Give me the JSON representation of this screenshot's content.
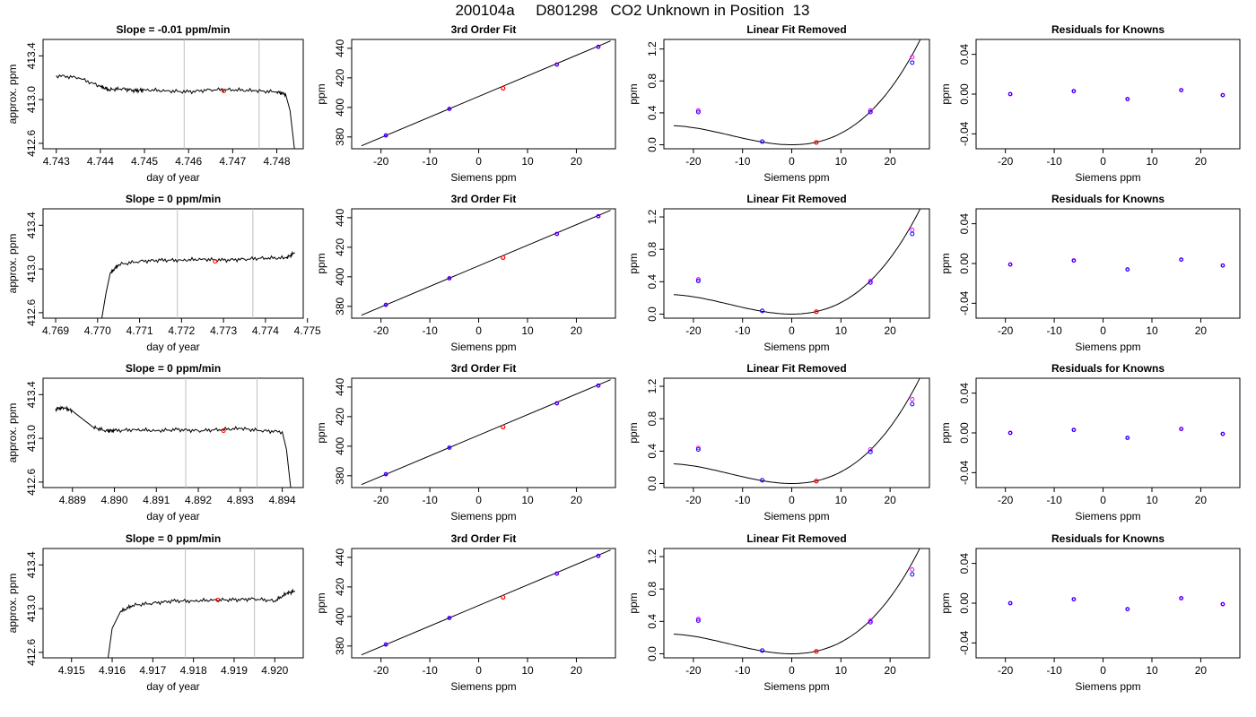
{
  "figure": {
    "title": "200104a     D801298   CO2 Unknown in Position  13"
  },
  "colors": {
    "trace": "#000000",
    "window_lines": "#bebebe",
    "unknown_point": "#ff0000",
    "known_point_a": "#0000ff",
    "known_point_b": "#ff00ff"
  },
  "chart_data": [
    {
      "type": "line",
      "row": 1,
      "col": 1,
      "title": "Slope =  -0.01  ppm/min",
      "xlabel": "day of year",
      "ylabel": "approx. ppm",
      "xlim": [
        4.7427,
        4.7486
      ],
      "ylim": [
        412.55,
        413.55
      ],
      "xticks": [
        4.743,
        4.744,
        4.745,
        4.746,
        4.747,
        4.748
      ],
      "xtick_labels": [
        "4.743",
        "4.744",
        "4.745",
        "4.746",
        "4.747",
        "4.748"
      ],
      "yticks": [
        412.6,
        413.0,
        413.4
      ],
      "ytick_labels": [
        "412.6",
        "413.0",
        "413.4"
      ],
      "window": [
        4.7459,
        4.7476
      ],
      "point": [
        4.7468,
        413.08
      ],
      "x": [
        4.743,
        4.7435,
        4.744,
        4.7442,
        4.7445,
        4.7448,
        4.745,
        4.7455,
        4.746,
        4.7465,
        4.747,
        4.7475,
        4.748,
        4.7482,
        4.7483,
        4.7484
      ],
      "y": [
        413.22,
        413.2,
        413.12,
        413.09,
        413.1,
        413.08,
        413.09,
        413.08,
        413.07,
        413.09,
        413.09,
        413.08,
        413.07,
        413.05,
        412.9,
        412.55
      ]
    },
    {
      "type": "scatter+line",
      "row": 1,
      "col": 2,
      "title": "3rd Order Fit",
      "xlabel": "Siemens ppm",
      "ylabel": "ppm",
      "xlim": [
        -26,
        28
      ],
      "ylim": [
        372,
        446
      ],
      "xticks": [
        -20,
        -10,
        0,
        10,
        20
      ],
      "xtick_labels": [
        "-20",
        "-10",
        "0",
        "10",
        "20"
      ],
      "yticks": [
        380,
        400,
        420,
        440
      ],
      "ytick_labels": [
        "380",
        "400",
        "420",
        "440"
      ],
      "fit_line": [
        [
          -24,
          374
        ],
        [
          27,
          445
        ]
      ],
      "known_x": [
        -19,
        -6,
        16,
        24.5
      ],
      "known_y": [
        381,
        399,
        429,
        441
      ],
      "unknown": [
        5,
        413
      ]
    },
    {
      "type": "scatter+line",
      "row": 1,
      "col": 3,
      "title": "Linear Fit Removed",
      "xlabel": "Siemens ppm",
      "ylabel": "ppm",
      "xlim": [
        -26,
        28
      ],
      "ylim": [
        -0.05,
        1.32
      ],
      "xticks": [
        -20,
        -10,
        0,
        10,
        20
      ],
      "xtick_labels": [
        "-20",
        "-10",
        "0",
        "10",
        "20"
      ],
      "yticks": [
        0.0,
        0.4,
        0.8,
        1.2
      ],
      "ytick_labels": [
        "0.0",
        "0.4",
        "0.8",
        "1.2"
      ],
      "curve": {
        "a": 0.00114,
        "b": 0.0,
        "c": 0.0,
        "d": 3.02e-05,
        "x_from": -24,
        "x_to": 27
      },
      "known_x": [
        -19,
        -6,
        16,
        24.5
      ],
      "known_y_a": [
        0.41,
        0.04,
        0.41,
        1.03
      ],
      "known_y_b": [
        0.43,
        0.04,
        0.43,
        1.1
      ],
      "unknown": [
        5,
        0.03
      ]
    },
    {
      "type": "scatter",
      "row": 1,
      "col": 4,
      "title": "Residuals for Knowns",
      "xlabel": "Siemens ppm",
      "ylabel": "ppm",
      "xlim": [
        -26,
        28
      ],
      "ylim": [
        -0.055,
        0.055
      ],
      "xticks": [
        -20,
        -10,
        0,
        10,
        20
      ],
      "xtick_labels": [
        "-20",
        "-10",
        "0",
        "10",
        "20"
      ],
      "yticks": [
        -0.04,
        0.0,
        0.04
      ],
      "ytick_labels": [
        "-0.04",
        "0.00",
        "0.04"
      ],
      "x": [
        -19,
        -6,
        5,
        16,
        24.5
      ],
      "y": [
        0.0,
        0.003,
        -0.005,
        0.004,
        -0.001
      ]
    },
    {
      "type": "line",
      "row": 2,
      "col": 1,
      "title": "Slope =  0  ppm/min",
      "xlabel": "day of year",
      "ylabel": "approx. ppm",
      "xlim": [
        4.7687,
        4.7749
      ],
      "ylim": [
        412.55,
        413.55
      ],
      "xticks": [
        4.769,
        4.77,
        4.771,
        4.772,
        4.773,
        4.774,
        4.775
      ],
      "xtick_labels": [
        "4.769",
        "4.770",
        "4.771",
        "4.772",
        "4.773",
        "4.774",
        "4.775"
      ],
      "yticks": [
        412.6,
        413.0,
        413.4
      ],
      "ytick_labels": [
        "412.6",
        "413.0",
        "413.4"
      ],
      "window": [
        4.7719,
        4.7737
      ],
      "point": [
        4.7728,
        413.07
      ],
      "x": [
        4.7701,
        4.7702,
        4.7703,
        4.7705,
        4.771,
        4.7715,
        4.772,
        4.7725,
        4.773,
        4.7735,
        4.774,
        4.7745,
        4.7747
      ],
      "y": [
        412.55,
        412.78,
        412.96,
        413.04,
        413.07,
        413.08,
        413.08,
        413.09,
        413.08,
        413.09,
        413.1,
        413.1,
        413.15
      ]
    },
    {
      "type": "scatter+line",
      "row": 2,
      "col": 2,
      "title": "3rd Order Fit",
      "xlabel": "Siemens ppm",
      "ylabel": "ppm",
      "xlim": [
        -26,
        28
      ],
      "ylim": [
        372,
        446
      ],
      "xticks": [
        -20,
        -10,
        0,
        10,
        20
      ],
      "xtick_labels": [
        "-20",
        "-10",
        "0",
        "10",
        "20"
      ],
      "yticks": [
        380,
        400,
        420,
        440
      ],
      "ytick_labels": [
        "380",
        "400",
        "420",
        "440"
      ],
      "fit_line": [
        [
          -24,
          374
        ],
        [
          27,
          445
        ]
      ],
      "known_x": [
        -19,
        -6,
        16,
        24.5
      ],
      "known_y": [
        381,
        399,
        429,
        441
      ],
      "unknown": [
        5,
        413
      ]
    },
    {
      "type": "scatter+line",
      "row": 2,
      "col": 3,
      "title": "Linear Fit Removed",
      "xlabel": "Siemens ppm",
      "ylabel": "ppm",
      "xlim": [
        -26,
        28
      ],
      "ylim": [
        -0.05,
        1.3
      ],
      "xticks": [
        -20,
        -10,
        0,
        10,
        20
      ],
      "xtick_labels": [
        "-20",
        "-10",
        "0",
        "10",
        "20"
      ],
      "yticks": [
        0.0,
        0.4,
        0.8,
        1.2
      ],
      "ytick_labels": [
        "0.0",
        "0.4",
        "0.8",
        "1.2"
      ],
      "curve": {
        "a": 0.00113,
        "b": 0.0,
        "c": 0.0,
        "d": 2.97e-05,
        "x_from": -24,
        "x_to": 27
      },
      "known_x": [
        -19,
        -6,
        16,
        24.5
      ],
      "known_y_a": [
        0.41,
        0.04,
        0.39,
        0.99
      ],
      "known_y_b": [
        0.43,
        0.04,
        0.41,
        1.04
      ],
      "unknown": [
        5,
        0.03
      ]
    },
    {
      "type": "scatter",
      "row": 2,
      "col": 4,
      "title": "Residuals for Knowns",
      "xlabel": "Siemens ppm",
      "ylabel": "ppm",
      "xlim": [
        -26,
        28
      ],
      "ylim": [
        -0.055,
        0.055
      ],
      "xticks": [
        -20,
        -10,
        0,
        10,
        20
      ],
      "xtick_labels": [
        "-20",
        "-10",
        "0",
        "10",
        "20"
      ],
      "yticks": [
        -0.04,
        0.0,
        0.04
      ],
      "ytick_labels": [
        "-0.04",
        "0.00",
        "0.04"
      ],
      "x": [
        -19,
        -6,
        5,
        16,
        24.5
      ],
      "y": [
        -0.001,
        0.003,
        -0.006,
        0.004,
        -0.002
      ]
    },
    {
      "type": "line",
      "row": 3,
      "col": 1,
      "title": "Slope =  0  ppm/min",
      "xlabel": "day of year",
      "ylabel": "approx. ppm",
      "xlim": [
        4.8883,
        4.8945
      ],
      "ylim": [
        412.55,
        413.55
      ],
      "xticks": [
        4.889,
        4.89,
        4.891,
        4.892,
        4.893,
        4.894
      ],
      "xtick_labels": [
        "4.889",
        "4.890",
        "4.891",
        "4.892",
        "4.893",
        "4.894"
      ],
      "yticks": [
        412.6,
        413.0,
        413.4
      ],
      "ytick_labels": [
        "412.6",
        "413.0",
        "413.4"
      ],
      "window": [
        4.8917,
        4.8934
      ],
      "point": [
        4.8926,
        413.07
      ],
      "x": [
        4.8886,
        4.8888,
        4.889,
        4.8895,
        4.8898,
        4.89,
        4.8905,
        4.891,
        4.8915,
        4.892,
        4.8925,
        4.893,
        4.8935,
        4.894,
        4.8941,
        4.8942
      ],
      "y": [
        413.27,
        413.28,
        413.25,
        413.1,
        413.07,
        413.07,
        413.08,
        413.07,
        413.08,
        413.07,
        413.08,
        413.09,
        413.07,
        413.06,
        412.9,
        412.55
      ]
    },
    {
      "type": "scatter+line",
      "row": 3,
      "col": 2,
      "title": "3rd Order Fit",
      "xlabel": "Siemens ppm",
      "ylabel": "ppm",
      "xlim": [
        -26,
        28
      ],
      "ylim": [
        372,
        446
      ],
      "xticks": [
        -20,
        -10,
        0,
        10,
        20
      ],
      "xtick_labels": [
        "-20",
        "-10",
        "0",
        "10",
        "20"
      ],
      "yticks": [
        380,
        400,
        420,
        440
      ],
      "ytick_labels": [
        "380",
        "400",
        "420",
        "440"
      ],
      "fit_line": [
        [
          -24,
          374
        ],
        [
          27,
          445
        ]
      ],
      "known_x": [
        -19,
        -6,
        16,
        24.5
      ],
      "known_y": [
        381,
        399,
        429,
        441
      ],
      "unknown": [
        5,
        413
      ]
    },
    {
      "type": "scatter+line",
      "row": 3,
      "col": 3,
      "title": "Linear Fit Removed",
      "xlabel": "Siemens ppm",
      "ylabel": "ppm",
      "xlim": [
        -26,
        28
      ],
      "ylim": [
        -0.05,
        1.3
      ],
      "xticks": [
        -20,
        -10,
        0,
        10,
        20
      ],
      "xtick_labels": [
        "-20",
        "-10",
        "0",
        "10",
        "20"
      ],
      "yticks": [
        0.0,
        0.4,
        0.8,
        1.2
      ],
      "ytick_labels": [
        "0.0",
        "0.4",
        "0.8",
        "1.2"
      ],
      "curve": {
        "a": 0.00114,
        "b": 0.0,
        "c": 0.0,
        "d": 2.99e-05,
        "x_from": -24,
        "x_to": 27
      },
      "known_x": [
        -19,
        -6,
        16,
        24.5
      ],
      "known_y_a": [
        0.42,
        0.04,
        0.39,
        0.98
      ],
      "known_y_b": [
        0.44,
        0.04,
        0.42,
        1.04
      ],
      "unknown": [
        5,
        0.03
      ]
    },
    {
      "type": "scatter",
      "row": 3,
      "col": 4,
      "title": "Residuals for Knowns",
      "xlabel": "Siemens ppm",
      "ylabel": "ppm",
      "xlim": [
        -26,
        28
      ],
      "ylim": [
        -0.055,
        0.055
      ],
      "xticks": [
        -20,
        -10,
        0,
        10,
        20
      ],
      "xtick_labels": [
        "-20",
        "-10",
        "0",
        "10",
        "20"
      ],
      "yticks": [
        -0.04,
        0.0,
        0.04
      ],
      "ytick_labels": [
        "-0.04",
        "0.00",
        "0.04"
      ],
      "x": [
        -19,
        -6,
        5,
        16,
        24.5
      ],
      "y": [
        0.0,
        0.003,
        -0.005,
        0.004,
        -0.001
      ]
    },
    {
      "type": "line",
      "row": 4,
      "col": 1,
      "title": "Slope =  0  ppm/min",
      "xlabel": "day of year",
      "ylabel": "approx. ppm",
      "xlim": [
        4.9143,
        4.9207
      ],
      "ylim": [
        412.55,
        413.55
      ],
      "xticks": [
        4.915,
        4.916,
        4.917,
        4.918,
        4.919,
        4.92
      ],
      "xtick_labels": [
        "4.915",
        "4.916",
        "4.917",
        "4.918",
        "4.919",
        "4.920"
      ],
      "yticks": [
        412.6,
        413.0,
        413.4
      ],
      "ytick_labels": [
        "412.6",
        "413.0",
        "413.4"
      ],
      "window": [
        4.9178,
        4.9195
      ],
      "point": [
        4.9186,
        413.08
      ],
      "x": [
        4.9159,
        4.916,
        4.9162,
        4.9165,
        4.917,
        4.9175,
        4.918,
        4.9185,
        4.919,
        4.9195,
        4.92,
        4.9203,
        4.9205
      ],
      "y": [
        412.55,
        412.82,
        412.97,
        413.03,
        413.05,
        413.07,
        413.07,
        413.08,
        413.08,
        413.09,
        413.07,
        413.14,
        413.16
      ]
    },
    {
      "type": "scatter+line",
      "row": 4,
      "col": 2,
      "title": "3rd Order Fit",
      "xlabel": "Siemens ppm",
      "ylabel": "ppm",
      "xlim": [
        -26,
        28
      ],
      "ylim": [
        372,
        446
      ],
      "xticks": [
        -20,
        -10,
        0,
        10,
        20
      ],
      "xtick_labels": [
        "-20",
        "-10",
        "0",
        "10",
        "20"
      ],
      "yticks": [
        380,
        400,
        420,
        440
      ],
      "ytick_labels": [
        "380",
        "400",
        "420",
        "440"
      ],
      "fit_line": [
        [
          -24,
          374
        ],
        [
          27,
          445
        ]
      ],
      "known_x": [
        -19,
        -6,
        16,
        24.5
      ],
      "known_y": [
        381,
        399,
        429,
        441
      ],
      "unknown": [
        5,
        413
      ]
    },
    {
      "type": "scatter+line",
      "row": 4,
      "col": 3,
      "title": "Linear Fit Removed",
      "xlabel": "Siemens ppm",
      "ylabel": "ppm",
      "xlim": [
        -26,
        28
      ],
      "ylim": [
        -0.05,
        1.3
      ],
      "xticks": [
        -20,
        -10,
        0,
        10,
        20
      ],
      "xtick_labels": [
        "-20",
        "-10",
        "0",
        "10",
        "20"
      ],
      "yticks": [
        0.0,
        0.4,
        0.8,
        1.2
      ],
      "ytick_labels": [
        "0.0",
        "0.4",
        "0.8",
        "1.2"
      ],
      "curve": {
        "a": 0.00114,
        "b": 0.0,
        "c": 0.0,
        "d": 2.99e-05,
        "x_from": -24,
        "x_to": 27
      },
      "known_x": [
        -19,
        -6,
        16,
        24.5
      ],
      "known_y_a": [
        0.41,
        0.04,
        0.39,
        0.98
      ],
      "known_y_b": [
        0.43,
        0.04,
        0.41,
        1.04
      ],
      "unknown": [
        5,
        0.03
      ]
    },
    {
      "type": "scatter",
      "row": 4,
      "col": 4,
      "title": "Residuals for Knowns",
      "xlabel": "Siemens ppm",
      "ylabel": "ppm",
      "xlim": [
        -26,
        28
      ],
      "ylim": [
        -0.055,
        0.055
      ],
      "xticks": [
        -20,
        -10,
        0,
        10,
        20
      ],
      "xtick_labels": [
        "-20",
        "-10",
        "0",
        "10",
        "20"
      ],
      "yticks": [
        -0.04,
        0.0,
        0.04
      ],
      "ytick_labels": [
        "-0.04",
        "0.00",
        "0.04"
      ],
      "x": [
        -19,
        -6,
        5,
        16,
        24.5
      ],
      "y": [
        0.0,
        0.004,
        -0.006,
        0.005,
        -0.001
      ]
    }
  ]
}
